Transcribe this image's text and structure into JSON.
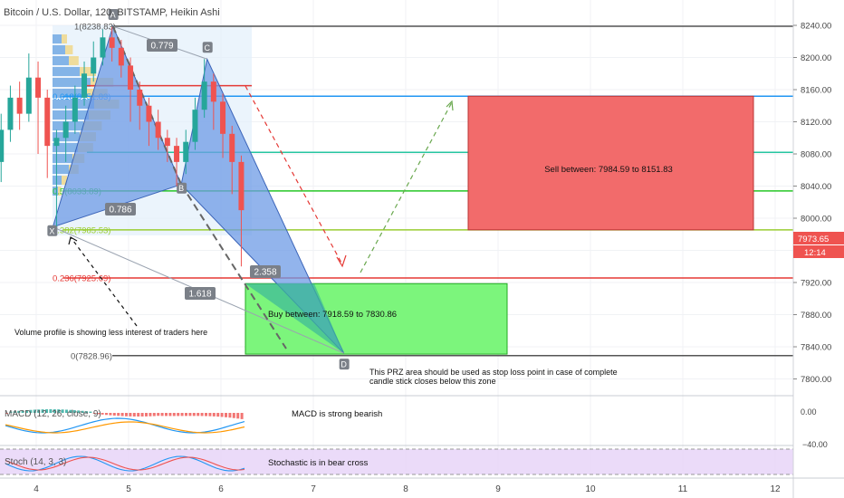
{
  "header": {
    "title": "Bitcoin / U.S. Dollar, 120, BITSTAMP, Heikin Ashi"
  },
  "colors": {
    "bull": "#26a69a",
    "bear": "#ef5350",
    "harmonic_fill": "#6e9be6",
    "sell_box": "#f26b6b",
    "buy_box": "#7cf57c",
    "price_tag": "#ef5350",
    "stoch_bg": "#e6d2f7"
  },
  "chart_data": {
    "type": "candlestick",
    "price_axis": {
      "ticks": [
        "8240.00",
        "8200.00",
        "8160.00",
        "8120.00",
        "8080.00",
        "8040.00",
        "8000.00",
        "7960.00",
        "7920.00",
        "7880.00",
        "7840.00",
        "7800.00"
      ],
      "tick_values": [
        8240,
        8200,
        8160,
        8120,
        8080,
        8040,
        8000,
        7960,
        7920,
        7880,
        7840,
        7800
      ],
      "current_price": "7973.65",
      "countdown": "12:14"
    },
    "time_axis": {
      "ticks": [
        "4",
        "5",
        "6",
        "7",
        "8",
        "9",
        "10",
        "11",
        "12"
      ]
    },
    "fib_levels": [
      {
        "label": "1(8238.83)",
        "value": 8238.83,
        "color": "#555555"
      },
      {
        "label": "0.618(8151.83)",
        "value": 8151.83,
        "color": "#2196f3"
      },
      {
        "label": "0.5(8033.89)",
        "value": 8033.89,
        "color": "#26c626"
      },
      {
        "label": "0.382(7985.53)",
        "value": 7985.53,
        "color": "#9acd32"
      },
      {
        "label": "0.236(7925.69)",
        "value": 7925.69,
        "color": "#e53935"
      },
      {
        "label": "0(7828.96)",
        "value": 7828.96,
        "color": "#555555"
      }
    ],
    "extra_levels": [
      {
        "value": 8165,
        "color": "#e53935"
      },
      {
        "value": 8082,
        "color": "#26c6a0"
      }
    ],
    "pattern_points": [
      {
        "name": "X",
        "t": 4.18,
        "price": 7989
      },
      {
        "name": "A",
        "t": 4.83,
        "price": 8238.83
      },
      {
        "name": "B",
        "t": 5.57,
        "price": 8042
      },
      {
        "name": "C",
        "t": 5.85,
        "price": 8198
      },
      {
        "name": "D",
        "t": 7.33,
        "price": 7832
      }
    ],
    "ratios": [
      {
        "label": "0.779"
      },
      {
        "label": "0.786"
      },
      {
        "label": "2.358"
      },
      {
        "label": "1.618"
      }
    ],
    "candles": [
      {
        "t": 3.62,
        "o": 8070,
        "c": 8110,
        "h": 8130,
        "l": 8045
      },
      {
        "t": 3.72,
        "o": 8110,
        "c": 8150,
        "h": 8165,
        "l": 8095
      },
      {
        "t": 3.82,
        "o": 8150,
        "c": 8130,
        "h": 8170,
        "l": 8110
      },
      {
        "t": 3.92,
        "o": 8130,
        "c": 8175,
        "h": 8205,
        "l": 8120
      },
      {
        "t": 4.02,
        "o": 8175,
        "c": 8150,
        "h": 8195,
        "l": 8080
      },
      {
        "t": 4.12,
        "o": 8150,
        "c": 8090,
        "h": 8160,
        "l": 8050
      },
      {
        "t": 4.22,
        "o": 8090,
        "c": 8100,
        "h": 8110,
        "l": 7990
      },
      {
        "t": 4.32,
        "o": 8100,
        "c": 8120,
        "h": 8140,
        "l": 8070
      },
      {
        "t": 4.42,
        "o": 8120,
        "c": 8150,
        "h": 8165,
        "l": 8105
      },
      {
        "t": 4.52,
        "o": 8150,
        "c": 8180,
        "h": 8195,
        "l": 8140
      },
      {
        "t": 4.62,
        "o": 8180,
        "c": 8200,
        "h": 8220,
        "l": 8170
      },
      {
        "t": 4.72,
        "o": 8200,
        "c": 8225,
        "h": 8235,
        "l": 8190
      },
      {
        "t": 4.82,
        "o": 8225,
        "c": 8212,
        "h": 8238,
        "l": 8195
      },
      {
        "t": 4.92,
        "o": 8212,
        "c": 8190,
        "h": 8222,
        "l": 8175
      },
      {
        "t": 5.02,
        "o": 8190,
        "c": 8160,
        "h": 8200,
        "l": 8120
      },
      {
        "t": 5.12,
        "o": 8160,
        "c": 8140,
        "h": 8170,
        "l": 8110
      },
      {
        "t": 5.22,
        "o": 8140,
        "c": 8120,
        "h": 8150,
        "l": 8090
      },
      {
        "t": 5.32,
        "o": 8120,
        "c": 8100,
        "h": 8135,
        "l": 8085
      },
      {
        "t": 5.42,
        "o": 8100,
        "c": 8090,
        "h": 8110,
        "l": 8070
      },
      {
        "t": 5.52,
        "o": 8090,
        "c": 8070,
        "h": 8100,
        "l": 8040
      },
      {
        "t": 5.62,
        "o": 8070,
        "c": 8095,
        "h": 8110,
        "l": 8055
      },
      {
        "t": 5.72,
        "o": 8095,
        "c": 8135,
        "h": 8150,
        "l": 8085
      },
      {
        "t": 5.82,
        "o": 8135,
        "c": 8170,
        "h": 8198,
        "l": 8125
      },
      {
        "t": 5.92,
        "o": 8170,
        "c": 8145,
        "h": 8180,
        "l": 8110
      },
      {
        "t": 6.02,
        "o": 8145,
        "c": 8105,
        "h": 8155,
        "l": 8075
      },
      {
        "t": 6.12,
        "o": 8105,
        "c": 8070,
        "h": 8115,
        "l": 8030
      },
      {
        "t": 6.22,
        "o": 8070,
        "c": 8010,
        "h": 8078,
        "l": 7940
      }
    ]
  },
  "zones": {
    "sell_label": "Sell between: 7984.59 to 8151.83",
    "buy_label": "Buy between: 7918.59 to 7830.86"
  },
  "annotations": {
    "volume_note": "Volume profile is showing less interest of traders here",
    "prz_note_line1": "This PRZ area should be used as stop loss point in case of complete",
    "prz_note_line2": "candle stick closes below this zone",
    "macd_note": "MACD is strong bearish",
    "stoch_note": "Stochastic is in bear cross"
  },
  "macd": {
    "label": "MACD (12, 26, close, 9)",
    "ticks": [
      "0.00",
      "−40.00"
    ]
  },
  "stoch": {
    "label": "Stoch (14, 3, 3)"
  }
}
